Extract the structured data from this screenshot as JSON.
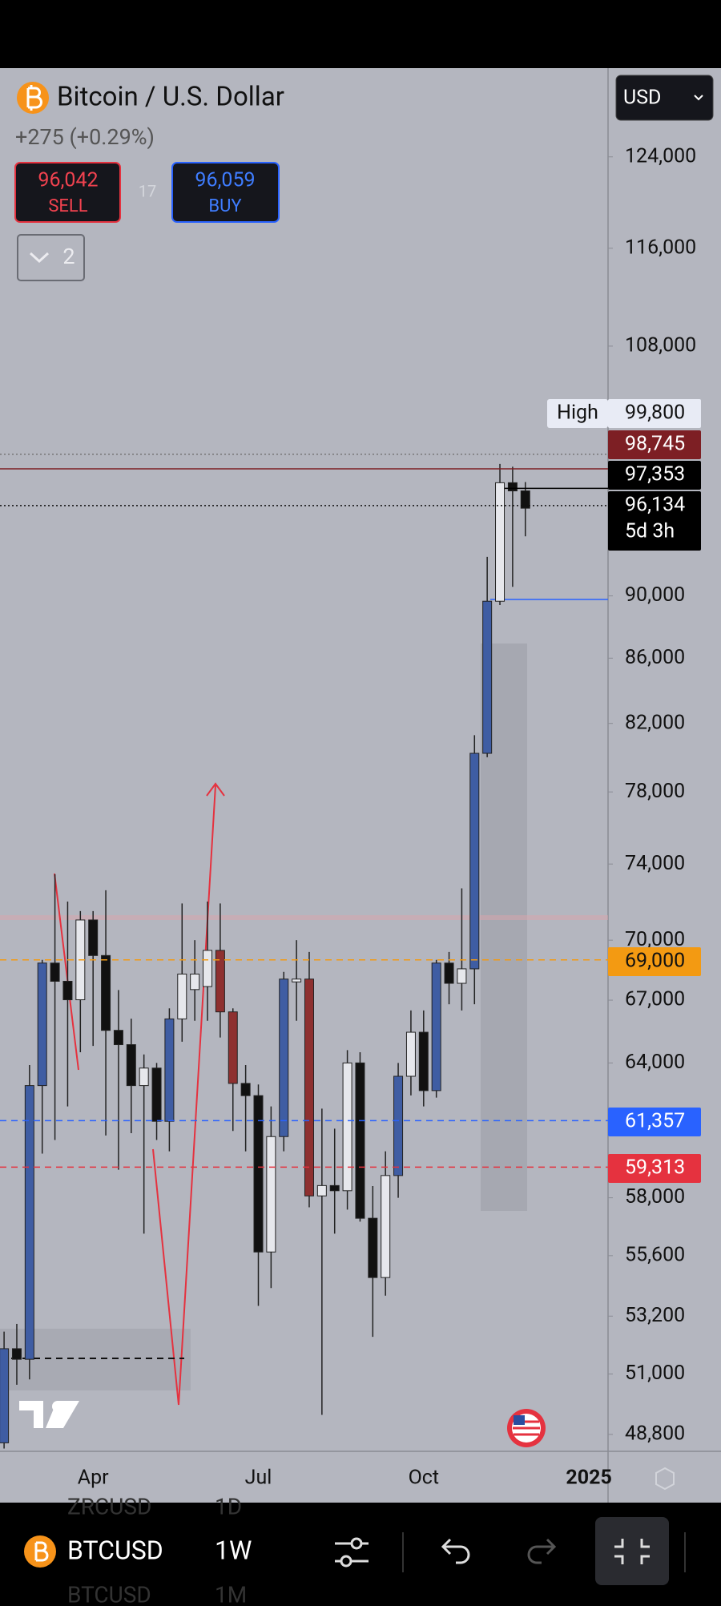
{
  "header": {
    "title": "Bitcoin / U.S. Dollar",
    "change": "+275 (+0.29%)",
    "sell": {
      "price": "96,042",
      "label": "SELL"
    },
    "spread": "17",
    "buy": {
      "price": "96,059",
      "label": "BUY"
    },
    "collapsed_count": "2",
    "currency": "USD"
  },
  "chart_data": {
    "type": "candlestick",
    "categories": [
      null,
      null,
      null,
      null,
      null,
      null,
      null,
      "Apr",
      null,
      null,
      null,
      null,
      null,
      null,
      null,
      null,
      null,
      null,
      null,
      null,
      "Jul",
      null,
      null,
      null,
      null,
      null,
      null,
      null,
      null,
      null,
      null,
      null,
      null,
      "Oct",
      null,
      null,
      null,
      null,
      null,
      null,
      null,
      null,
      null,
      null,
      null,
      null,
      "2025"
    ],
    "open": [
      48500,
      51950,
      51550,
      62950,
      68840,
      67930,
      67020,
      71040,
      69220,
      65540,
      64860,
      62950,
      63760,
      61330,
      66090,
      67520,
      67670,
      69480,
      66430,
      63050,
      62490,
      55750,
      60650,
      67900,
      68040,
      58080,
      58520,
      58300,
      64000,
      57140,
      54720,
      58950,
      63380,
      65450,
      62720,
      68840,
      67830,
      68550,
      80230,
      89650,
      97750,
      97170,
      null,
      null,
      null,
      null,
      null
    ],
    "high": [
      52600,
      52900,
      63900,
      69000,
      73450,
      72000,
      71500,
      71500,
      72600,
      67500,
      66100,
      64400,
      64000,
      66600,
      71900,
      70000,
      72000,
      71900,
      66600,
      63900,
      63000,
      62000,
      68400,
      70000,
      69400,
      61900,
      61000,
      64600,
      64500,
      58500,
      60000,
      64000,
      66500,
      66500,
      69000,
      69400,
      72700,
      81300,
      92600,
      99100,
      98900,
      97800,
      null,
      null,
      null,
      null,
      null
    ],
    "low": [
      48300,
      50600,
      50800,
      59900,
      60500,
      62000,
      64500,
      64800,
      60700,
      59200,
      60800,
      56500,
      60500,
      60000,
      65000,
      66000,
      66000,
      65200,
      60900,
      60000,
      53600,
      54300,
      60000,
      66000,
      57600,
      49500,
      56500,
      57500,
      57000,
      52400,
      54000,
      58000,
      62500,
      62000,
      62400,
      66800,
      66500,
      66800,
      80000,
      89400,
      90600,
      94000,
      null,
      null,
      null,
      null,
      null
    ],
    "close": [
      51950,
      51550,
      62950,
      68840,
      67930,
      67020,
      71040,
      69220,
      65540,
      64860,
      62950,
      63760,
      61330,
      66090,
      68290,
      68290,
      69480,
      66430,
      63050,
      62490,
      55750,
      60650,
      68040,
      68040,
      58080,
      58520,
      58300,
      64000,
      57140,
      54720,
      58950,
      63380,
      65450,
      62720,
      68840,
      67830,
      68550,
      80230,
      89650,
      97750,
      97170,
      95950,
      null,
      null,
      null,
      null,
      null
    ],
    "candle_colors": [
      "#3f5da3",
      "#111111",
      "#3f5da3",
      "#3f5da3",
      "#111111",
      "#111111",
      "#e6e7ec",
      "#111111",
      "#111111",
      "#111111",
      "#111111",
      "#e6e7ec",
      "#111111",
      "#3f5da3",
      "#e6e7ec",
      "#e6e7ec",
      "#e6e7ec",
      "#8e3030",
      "#8e3030",
      "#111111",
      "#111111",
      "#e6e7ec",
      "#3f5da3",
      "#e6e7ec",
      "#8e3030",
      "#e6e7ec",
      "#111111",
      "#e6e7ec",
      "#111111",
      "#111111",
      "#e6e7ec",
      "#3f5da3",
      "#e6e7ec",
      "#111111",
      "#3f5da3",
      "#111111",
      "#e6e7ec",
      "#3f5da3",
      "#3f5da3",
      "#e6e7ec",
      "#111111",
      "#111111",
      null,
      null,
      null,
      null,
      null
    ],
    "log_scale": true,
    "ylim": [
      48200,
      132300
    ],
    "yticks": [
      {
        "value": 124000,
        "label": "124,000"
      },
      {
        "value": 116000,
        "label": "116,000"
      },
      {
        "value": 108000,
        "label": "108,000"
      },
      {
        "value": 90000,
        "label": "90,000"
      },
      {
        "value": 86000,
        "label": "86,000"
      },
      {
        "value": 82000,
        "label": "82,000"
      },
      {
        "value": 78000,
        "label": "78,000"
      },
      {
        "value": 74000,
        "label": "74,000"
      },
      {
        "value": 70000,
        "label": "70,000"
      },
      {
        "value": 67000,
        "label": "67,000"
      },
      {
        "value": 64000,
        "label": "64,000"
      },
      {
        "value": 58000,
        "label": "58,000"
      },
      {
        "value": 55600,
        "label": "55,600"
      },
      {
        "value": 53200,
        "label": "53,200"
      },
      {
        "value": 51000,
        "label": "51,000"
      },
      {
        "value": 48800,
        "label": "48,800"
      }
    ],
    "price_lines": [
      {
        "name": "High",
        "value": 99800,
        "label": "99,800",
        "color": "#e8ebf5",
        "text_color": "#111111",
        "style": "dotted"
      },
      {
        "value": 98745,
        "label": "98,745",
        "color": "#7d1f24",
        "text_color": "#ffffff",
        "style": "solid"
      },
      {
        "value": 97353,
        "label": "97,353",
        "color": "#000000",
        "text_color": "#ffffff",
        "style": "short"
      },
      {
        "value": 96134,
        "label": "96,134",
        "countdown": "5d 3h",
        "color": "#000000",
        "text_color": "#ffffff",
        "style": "dotted"
      },
      {
        "value": 69000,
        "label": "69,000",
        "color": "#f39a12",
        "text_color": "#111111",
        "style": "dashed"
      },
      {
        "value": 61357,
        "label": "61,357",
        "color": "#2962ff",
        "text_color": "#ffffff",
        "style": "dashed"
      },
      {
        "value": 59313,
        "label": "59,313",
        "color": "#e5323f",
        "text_color": "#ffffff",
        "style": "dashed"
      }
    ]
  },
  "toolbar": {
    "symbol": "BTCUSD",
    "interval": "1W",
    "above": [
      "ZRCUSD",
      "1D"
    ],
    "below": [
      "BTCUSD",
      "1M"
    ]
  }
}
